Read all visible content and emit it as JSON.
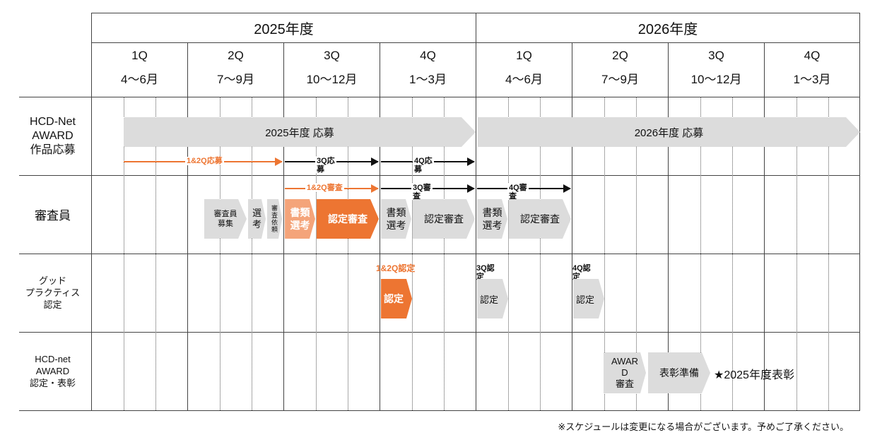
{
  "header": {
    "year1": "2025年度",
    "year2": "2026年度",
    "quarters": [
      {
        "q": "1Q",
        "months": "4～6月"
      },
      {
        "q": "2Q",
        "months": "7～9月"
      },
      {
        "q": "3Q",
        "months": "10～12月"
      },
      {
        "q": "4Q",
        "months": "1～3月"
      },
      {
        "q": "1Q",
        "months": "4～6月"
      },
      {
        "q": "2Q",
        "months": "7～9月"
      },
      {
        "q": "3Q",
        "months": "10～12月"
      },
      {
        "q": "4Q",
        "months": "1～3月"
      }
    ]
  },
  "rows": {
    "award_entry": "HCD-Net\nAWARD\n作品応募",
    "judges": "審査員",
    "good_practice": "グッド\nプラクティス\n認定",
    "award_cert": "HCD-net\nAWARD\n認定・表彰"
  },
  "bars": {
    "entry2025": "2025年度 応募",
    "entry2026": "2026年度 応募",
    "judge_recruit": "審査員\n募集",
    "selection": "選\n考",
    "request": "審\n査\n依\n頼",
    "doc_review1": "書類\n選考",
    "cert_review1": "認定審査",
    "doc_review2": "書類\n選考",
    "cert_review2": "認定審査",
    "doc_review3": "書類\n選考",
    "cert_review3": "認定審査",
    "cert_q12": "認定",
    "cert_q3": "認定",
    "cert_q4": "認定",
    "award_review": "AWAR\nD\n審査",
    "award_prep": "表彰準備",
    "award_star": "★2025年度表彰"
  },
  "arrows": {
    "a12_entry": "1&2Q応募",
    "a3_entry": "3Q応\n募",
    "a4_entry": "4Q応\n募",
    "a12_review": "1&2Q審査",
    "a3_review": "3Q審\n査",
    "a4_review": "4Q審\n査",
    "c12": "1&2Q認定",
    "c3": "3Q認\n定",
    "c4": "4Q認\n定"
  },
  "footnote": "※スケジュールは変更になる場合がございます。予めご了承ください。",
  "colors": {
    "orange": "#ed7532",
    "light_orange": "#f4a47a",
    "gray": "#dcdcdc",
    "black": "#111111"
  }
}
